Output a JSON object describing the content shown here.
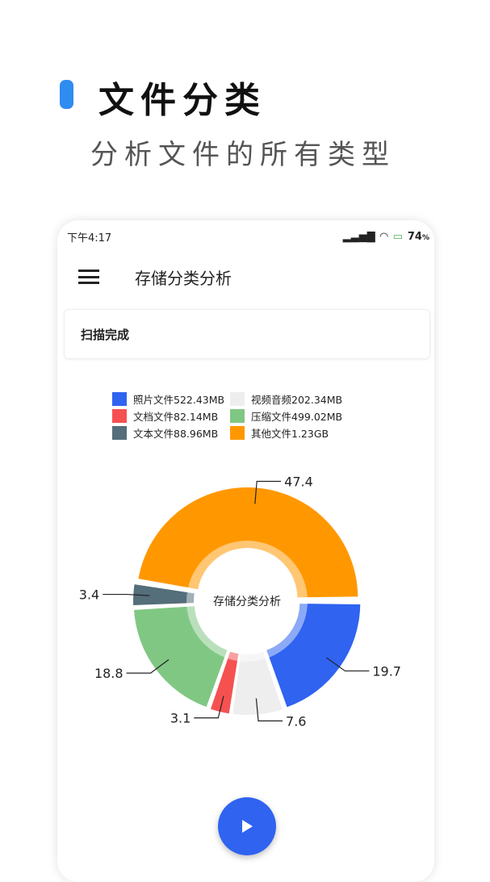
{
  "promo": {
    "title": "文件分类",
    "subtitle": "分析文件的所有类型"
  },
  "status": {
    "time": "下午4:17",
    "battery": "74",
    "battery_unit": "%"
  },
  "toolbar": {
    "title": "存储分类分析"
  },
  "scan": {
    "status": "扫描完成"
  },
  "chart_data": {
    "type": "pie",
    "center_label": "存储分类分析",
    "legend": [
      {
        "label": "照片文件522.43MB",
        "color": "#2f63f0"
      },
      {
        "label": "视频音频202.34MB",
        "color": "#eeeeee"
      },
      {
        "label": "文档文件82.14MB",
        "color": "#f55151"
      },
      {
        "label": "压缩文件499.02MB",
        "color": "#81c784"
      },
      {
        "label": "文本文件88.96MB",
        "color": "#546e7a"
      },
      {
        "label": "其他文件1.23GB",
        "color": "#ff9800"
      }
    ],
    "values": [
      19.7,
      7.6,
      3.1,
      18.8,
      3.4,
      47.4
    ],
    "value_labels": [
      "19.7",
      "7.6",
      "3.1",
      "18.8",
      "3.4",
      "47.4"
    ]
  }
}
